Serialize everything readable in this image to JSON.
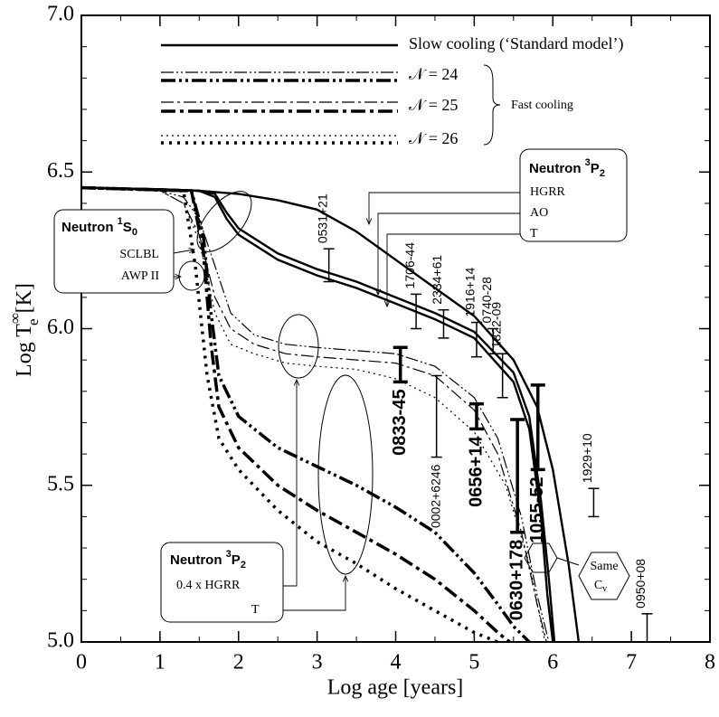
{
  "chart_data": {
    "type": "line",
    "color": "#000000",
    "xlabel": "Log age [years]",
    "ylabel": [
      "Log T",
      "∞",
      "e",
      " [K]"
    ],
    "xlim": [
      0,
      8
    ],
    "xticks": [
      0,
      1,
      2,
      3,
      4,
      5,
      6,
      7,
      8
    ],
    "ylim": [
      5,
      7
    ],
    "yticks": [
      {
        "value": 5,
        "label": "5.0"
      },
      5.5,
      {
        "value": 6,
        "label": "6.0"
      },
      6.5,
      {
        "value": 7,
        "label": "7.0"
      }
    ],
    "legend": [
      {
        "label": "Slow cooling (‘Standard model’)",
        "lines": [
          {
            "dash": "none",
            "width": 2.4
          }
        ]
      },
      {
        "label": "𝒩 = 24",
        "lines": [
          {
            "dash": "14 3 2 3 2 3",
            "width": 1.2
          },
          {
            "dash": "16 4 3 4 3 4",
            "width": 3.5
          }
        ]
      },
      {
        "label": "𝒩 = 25",
        "lines": [
          {
            "dash": "14 4 3 4",
            "width": 1.2
          },
          {
            "dash": "16 5 4 5",
            "width": 3.5
          }
        ]
      },
      {
        "label": "𝒩 = 26",
        "lines": [
          {
            "dash": "2 4",
            "width": 1.2
          },
          {
            "dash": "3 6",
            "width": 3.5
          }
        ]
      }
    ],
    "legend_group_label": "Fast cooling",
    "series": [
      {
        "dash": "none",
        "width": 2.4,
        "x": [
          0,
          1,
          1.5,
          2,
          2.5,
          3,
          3.5,
          4,
          4.5,
          5,
          5.5,
          5.8,
          6,
          6.2,
          6.33
        ],
        "values": [
          6.45,
          6.445,
          6.44,
          6.43,
          6.41,
          6.38,
          6.31,
          6.22,
          6.13,
          6.04,
          5.9,
          5.75,
          5.55,
          5.25,
          5.0
        ]
      },
      {
        "dash": "none",
        "width": 2.4,
        "x": [
          0,
          1,
          1.5,
          1.7,
          1.85,
          2,
          2.5,
          3,
          3.5,
          4,
          4.5,
          5,
          5.5,
          5.7,
          5.85,
          5.95,
          6.02
        ],
        "values": [
          6.45,
          6.445,
          6.44,
          6.43,
          6.37,
          6.32,
          6.24,
          6.19,
          6.15,
          6.1,
          6.05,
          5.99,
          5.86,
          5.72,
          5.45,
          5.2,
          5.0
        ]
      },
      {
        "dash": "none",
        "width": 2.4,
        "x": [
          0,
          1,
          1.5,
          1.7,
          1.85,
          2,
          2.5,
          3,
          3.5,
          4,
          4.5,
          5,
          5.5,
          5.7,
          5.85,
          5.93,
          6.0
        ],
        "values": [
          6.45,
          6.445,
          6.44,
          6.42,
          6.35,
          6.3,
          6.22,
          6.17,
          6.13,
          6.08,
          6.03,
          5.97,
          5.83,
          5.68,
          5.4,
          5.15,
          5.0
        ]
      },
      {
        "dash": "14 3 2 3 2 3",
        "width": 1.2,
        "x": [
          0,
          1,
          1.3,
          1.5,
          1.7,
          1.9,
          2.2,
          2.6,
          3,
          3.5,
          4,
          4.5,
          5,
          5.3,
          5.6,
          5.8,
          5.95
        ],
        "values": [
          6.45,
          6.44,
          6.42,
          6.35,
          6.2,
          6.05,
          5.98,
          5.95,
          5.94,
          5.93,
          5.92,
          5.88,
          5.78,
          5.65,
          5.4,
          5.15,
          5.0
        ]
      },
      {
        "dash": "14 4 3 4",
        "width": 1.2,
        "x": [
          0,
          1,
          1.3,
          1.5,
          1.7,
          1.9,
          2.2,
          2.6,
          3,
          3.5,
          4,
          4.5,
          5,
          5.3,
          5.6,
          5.8,
          5.92
        ],
        "values": [
          6.45,
          6.44,
          6.4,
          6.3,
          6.1,
          6.0,
          5.95,
          5.92,
          5.91,
          5.9,
          5.89,
          5.85,
          5.74,
          5.6,
          5.35,
          5.12,
          5.0
        ]
      },
      {
        "dash": "2 4",
        "width": 1.2,
        "x": [
          0,
          1,
          1.3,
          1.5,
          1.7,
          1.9,
          2.2,
          2.6,
          3,
          3.5,
          4,
          4.5,
          5,
          5.4,
          5.7,
          5.9
        ],
        "values": [
          6.45,
          6.44,
          6.4,
          6.28,
          6.05,
          5.95,
          5.92,
          5.89,
          5.88,
          5.87,
          5.84,
          5.78,
          5.67,
          5.5,
          5.25,
          5.0
        ]
      },
      {
        "dash": "16 4 3 4 3 4",
        "width": 3.5,
        "x": [
          0,
          1.4,
          1.55,
          1.65,
          1.75,
          2,
          2.5,
          3,
          3.5,
          4,
          4.5,
          5,
          5.3,
          5.5,
          5.7
        ],
        "values": [
          6.45,
          6.44,
          6.3,
          6.05,
          5.85,
          5.72,
          5.62,
          5.56,
          5.5,
          5.43,
          5.35,
          5.22,
          5.12,
          5.05,
          5.0
        ]
      },
      {
        "dash": "16 5 4 5",
        "width": 3.5,
        "x": [
          0,
          1.4,
          1.55,
          1.65,
          1.75,
          2,
          2.5,
          3,
          3.5,
          4,
          4.5,
          5,
          5.3,
          5.45
        ],
        "values": [
          6.45,
          6.44,
          6.25,
          5.95,
          5.75,
          5.62,
          5.5,
          5.42,
          5.35,
          5.28,
          5.2,
          5.1,
          5.03,
          5.0
        ]
      },
      {
        "dash": "3 6",
        "width": 3.5,
        "x": [
          0,
          1.3,
          1.45,
          1.6,
          1.75,
          2,
          2.5,
          3,
          3.5,
          4,
          4.5,
          5,
          5.3
        ],
        "values": [
          6.45,
          6.44,
          6.2,
          5.85,
          5.65,
          5.55,
          5.42,
          5.32,
          5.25,
          5.17,
          5.1,
          5.03,
          5.0
        ]
      }
    ],
    "pulsars": [
      {
        "name": "0531+21",
        "x": 3.15,
        "ylow": 6.15,
        "yhigh": 6.255,
        "bold": false,
        "label": "above"
      },
      {
        "name": "1706-44",
        "x": 4.26,
        "ylow": 6.0,
        "yhigh": 6.11,
        "bold": false,
        "label": "above"
      },
      {
        "name": "2334+61",
        "x": 4.61,
        "ylow": 5.97,
        "yhigh": 6.06,
        "bold": false,
        "label": "above"
      },
      {
        "name": "1916+14",
        "x": 5.03,
        "ylow": 5.91,
        "yhigh": 6.02,
        "bold": false,
        "label": "above"
      },
      {
        "name": "0740-28",
        "x": 5.24,
        "ylow": 5.92,
        "yhigh": 6.0,
        "bold": false,
        "label": "above"
      },
      {
        "name": "1822-09",
        "x": 5.36,
        "ylow": 5.78,
        "yhigh": 5.92,
        "bold": false,
        "label": "above"
      },
      {
        "name": "0833-45",
        "x": 4.06,
        "ylow": 5.83,
        "yhigh": 5.94,
        "bold": true,
        "label": "below"
      },
      {
        "name": "0002+6246",
        "x": 4.52,
        "ylow": 5.59,
        "yhigh": 5.85,
        "bold": false,
        "label": "below"
      },
      {
        "name": "0656+14",
        "x": 5.03,
        "ylow": 5.68,
        "yhigh": 5.76,
        "bold": true,
        "label": "below"
      },
      {
        "name": "0630+178",
        "x": 5.55,
        "ylow": 5.35,
        "yhigh": 5.71,
        "bold": true,
        "label": "below"
      },
      {
        "name": "1055-52",
        "x": 5.81,
        "ylow": 5.55,
        "yhigh": 5.82,
        "bold": true,
        "label": "below"
      },
      {
        "name": "1929+10",
        "x": 6.52,
        "ylow": 5.4,
        "yhigh": 5.49,
        "bold": false,
        "label": "above"
      },
      {
        "name": "0950+08",
        "x": 7.2,
        "ylow": 5.0,
        "yhigh": 5.09,
        "bold": false,
        "label": "above"
      }
    ],
    "annotations": [
      {
        "title": [
          "Neutron ",
          "1",
          "S",
          "0"
        ],
        "items": [
          "SCLBL",
          "AWP II"
        ]
      },
      {
        "title": [
          "Neutron ",
          "3",
          "P",
          "2"
        ],
        "items": [
          "HGRR",
          "AO",
          "T"
        ]
      },
      {
        "title": [
          "Neutron ",
          "3",
          "P",
          "2"
        ],
        "items": [
          "0.4 x HGRR",
          "T"
        ]
      }
    ],
    "hexagon_text": [
      "Same",
      "C",
      "v"
    ]
  }
}
